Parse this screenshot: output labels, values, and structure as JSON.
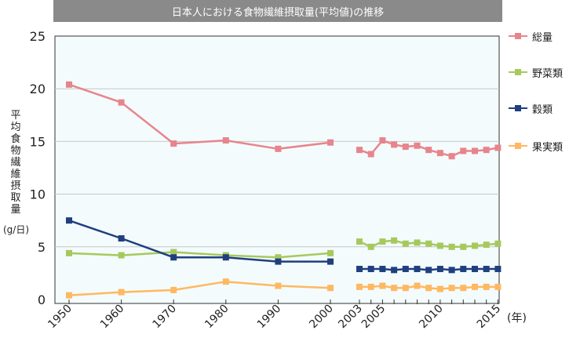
{
  "title": "日本人における食物繊維摂取量(平均値)の推移",
  "y_axis_label": "平均食物繊維摂取量",
  "y_axis_unit": "(g/日)",
  "x_axis_unit": "(年)",
  "colors": {
    "total": "#e8848c",
    "vegetables": "#a6c95c",
    "grains": "#1f3f7f",
    "fruits": "#ffb861",
    "plot_bg": "#f3fbfd",
    "grid": "#c8c8c8",
    "title_bg": "#8a8a8a"
  },
  "legend": [
    {
      "key": "total",
      "label": "総量",
      "color": "#e8848c"
    },
    {
      "key": "vegetables",
      "label": "野菜類",
      "color": "#a6c95c"
    },
    {
      "key": "grains",
      "label": "穀類",
      "color": "#1f3f7f"
    },
    {
      "key": "fruits",
      "label": "果実類",
      "color": "#ffb861"
    }
  ],
  "chart_data": {
    "type": "line",
    "title": "日本人における食物繊維摂取量(平均値)の推移",
    "ylabel": "平均食物繊維摂取量 (g/日)",
    "xlabel": "(年)",
    "ylim": [
      0,
      25
    ],
    "yticks": [
      0,
      5,
      10,
      15,
      20,
      25
    ],
    "grid": true,
    "legend_position": "right",
    "xtick_labels": [
      "1950",
      "1960",
      "1970",
      "1980",
      "1990",
      "2000",
      "2003",
      "2005",
      "2010",
      "2015"
    ],
    "x_minor_ticks": [
      2004,
      2006,
      2007,
      2008,
      2009,
      2011,
      2012,
      2013,
      2014
    ],
    "x_early": [
      1950,
      1960,
      1970,
      1980,
      1990,
      2000
    ],
    "x_recent": [
      2003,
      2004,
      2005,
      2006,
      2007,
      2008,
      2009,
      2010,
      2011,
      2012,
      2013,
      2014,
      2015
    ],
    "series": [
      {
        "key": "total",
        "name": "総量",
        "early": [
          20.4,
          18.7,
          14.8,
          15.1,
          14.3,
          14.9
        ],
        "recent": [
          14.2,
          13.8,
          15.1,
          14.7,
          14.5,
          14.6,
          14.2,
          13.9,
          13.6,
          14.1,
          14.1,
          14.2,
          14.4
        ]
      },
      {
        "key": "vegetables",
        "name": "野菜類",
        "early": [
          4.4,
          4.2,
          4.5,
          4.2,
          4.0,
          4.4
        ],
        "recent": [
          5.5,
          5.0,
          5.5,
          5.6,
          5.3,
          5.4,
          5.3,
          5.1,
          5.0,
          5.0,
          5.1,
          5.2,
          5.3
        ]
      },
      {
        "key": "grains",
        "name": "穀類",
        "early": [
          7.5,
          5.8,
          4.0,
          4.0,
          3.6,
          3.6
        ],
        "recent": [
          2.9,
          2.9,
          2.9,
          2.8,
          2.9,
          2.9,
          2.8,
          2.9,
          2.8,
          2.9,
          2.9,
          2.9,
          2.9
        ]
      },
      {
        "key": "fruits",
        "name": "果実類",
        "early": [
          0.4,
          0.7,
          0.9,
          1.7,
          1.3,
          1.1
        ],
        "recent": [
          1.2,
          1.2,
          1.3,
          1.1,
          1.1,
          1.3,
          1.1,
          1.0,
          1.1,
          1.1,
          1.2,
          1.2,
          1.2
        ]
      }
    ]
  }
}
